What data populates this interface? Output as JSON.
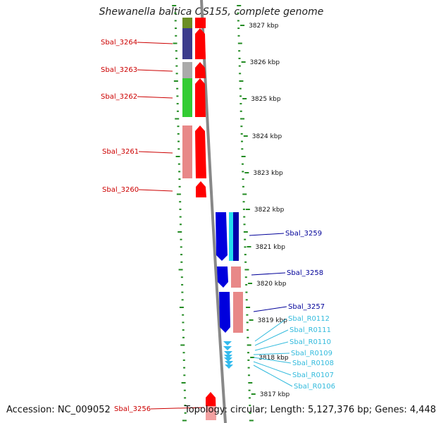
{
  "title": "Shewanella baltica OS155, complete genome",
  "accession": "Accession: NC_009052",
  "topology": "Topology: circular; Length: 5,127,376 bp; Genes: 4,448",
  "ticks": [
    "3827 kbp",
    "3826 kbp",
    "3825 kbp",
    "3824 kbp",
    "3823 kbp",
    "3822 kbp",
    "3821 kbp",
    "3820 kbp",
    "3819 kbp",
    "3818 kbp",
    "3817 kbp"
  ],
  "left_genes": [
    "Sbal_3264",
    "Sbal_3263",
    "Sbal_3262",
    "Sbal_3261",
    "Sbal_3260",
    "Sbal_3256"
  ],
  "right_genes": [
    "Sbal_3259",
    "Sbal_3258",
    "Sbal_3257"
  ],
  "rna_genes": [
    "Sbal_R0112",
    "Sbal_R0111",
    "Sbal_R0110",
    "Sbal_R0109",
    "Sbal_R0108",
    "Sbal_R0107",
    "Sbal_R0106"
  ],
  "colors": {
    "left_label": "#cc0000",
    "right_label": "#000099",
    "rna_label": "#33bbdd",
    "forward_gene": "#ff0000",
    "reverse_gene": "#0000dd",
    "tick": "#228b22",
    "backbone": "#888888"
  }
}
